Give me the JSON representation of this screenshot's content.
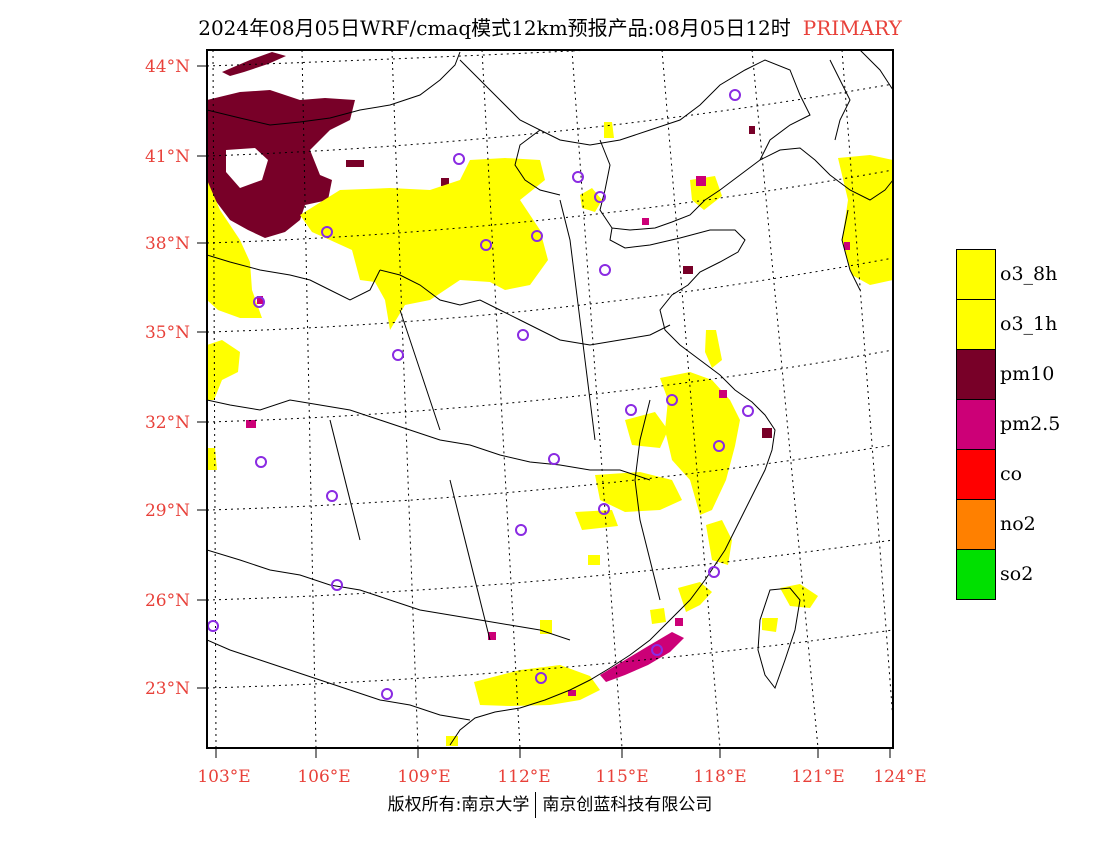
{
  "header": {
    "title": "2024年08月05日WRF/cmaq模式12km预报产品:08月05日12时",
    "mode": "PRIMARY"
  },
  "axes": {
    "lat_labels": [
      "44°N",
      "41°N",
      "38°N",
      "35°N",
      "32°N",
      "29°N",
      "26°N",
      "23°N"
    ],
    "lon_labels": [
      "103°E",
      "106°E",
      "109°E",
      "112°E",
      "115°E",
      "118°E",
      "121°E",
      "124°E"
    ],
    "tick_color": "#e8413a"
  },
  "legend": {
    "items": [
      {
        "label": "o3_8h",
        "color": "#ffff00"
      },
      {
        "label": "o3_1h",
        "color": "#ffff00"
      },
      {
        "label": "pm10",
        "color": "#780028"
      },
      {
        "label": "pm2.5",
        "color": "#cc0077"
      },
      {
        "label": "co",
        "color": "#ff0000"
      },
      {
        "label": "no2",
        "color": "#ff8000"
      },
      {
        "label": "so2",
        "color": "#00e000"
      }
    ]
  },
  "footer": {
    "left": "版权所有:南京大学",
    "right": "南京创蓝科技有限公司"
  },
  "colors": {
    "station_marker": "#8a2be2",
    "ozone": "#ffff00",
    "pm10": "#780028",
    "pm25": "#cc0077"
  }
}
